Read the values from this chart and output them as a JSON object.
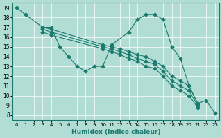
{
  "xlabel": "Humidex (Indice chaleur)",
  "background_color": "#b2ddd4",
  "grid_color": "#ffffff",
  "line_color": "#1a7a6e",
  "marker": "D",
  "marker_size": 2.5,
  "line_width": 0.8,
  "xlim": [
    -0.5,
    23.5
  ],
  "ylim": [
    7.5,
    19.5
  ],
  "xticks": [
    0,
    1,
    2,
    3,
    4,
    5,
    6,
    7,
    8,
    9,
    10,
    11,
    12,
    13,
    14,
    15,
    16,
    17,
    18,
    19,
    20,
    21,
    22,
    23
  ],
  "yticks": [
    8,
    9,
    10,
    11,
    12,
    13,
    14,
    15,
    16,
    17,
    18,
    19
  ],
  "figsize": [
    3.2,
    2.0
  ],
  "dpi": 100,
  "lines": [
    {
      "x": [
        0,
        1,
        3,
        4,
        5,
        6,
        7,
        8,
        9,
        10,
        11,
        13,
        14,
        15,
        16,
        17,
        18,
        19,
        20,
        21,
        22,
        23
      ],
      "y": [
        19,
        18.3,
        17,
        17,
        15,
        14,
        13,
        12.5,
        13,
        13,
        15.2,
        16.5,
        17.8,
        18.3,
        18.3,
        17.8,
        15,
        13.8,
        11,
        9.2,
        9.5,
        8.2
      ]
    },
    {
      "x": [
        3,
        4,
        10,
        11,
        12,
        13,
        14,
        15,
        16,
        17,
        18,
        19,
        20,
        21
      ],
      "y": [
        17,
        16.8,
        15.2,
        15.0,
        14.8,
        14.5,
        14.2,
        14.0,
        13.5,
        13.0,
        12.0,
        11.5,
        11.0,
        9.2
      ]
    },
    {
      "x": [
        3,
        4,
        10,
        11,
        12,
        13,
        14,
        15,
        16,
        17,
        18,
        19,
        20,
        21
      ],
      "y": [
        16.8,
        16.5,
        15.0,
        14.8,
        14.5,
        14.2,
        13.8,
        13.5,
        13.2,
        12.5,
        11.5,
        11.0,
        10.5,
        9.0
      ]
    },
    {
      "x": [
        3,
        4,
        10,
        11,
        12,
        13,
        14,
        15,
        16,
        17,
        18,
        19,
        20,
        21
      ],
      "y": [
        16.5,
        16.2,
        14.8,
        14.5,
        14.2,
        13.8,
        13.5,
        13.0,
        12.8,
        12.0,
        11.0,
        10.5,
        10.0,
        8.8
      ]
    }
  ]
}
